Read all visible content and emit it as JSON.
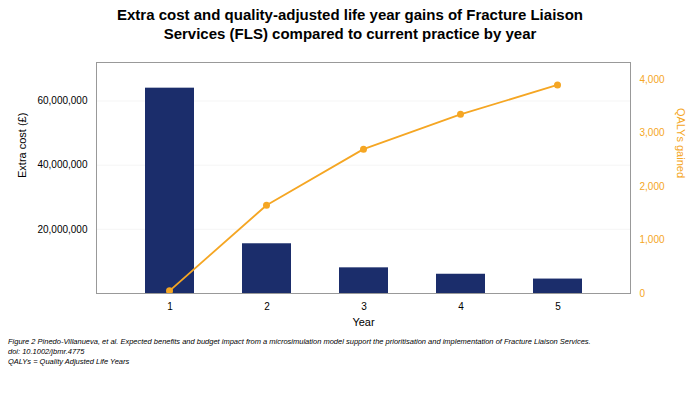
{
  "chart_data": {
    "type": "bar",
    "title": "Extra cost and quality-adjusted life year gains of Fracture Liaison\nServices (FLS) compared to current practice by year",
    "categories": [
      1,
      2,
      3,
      4,
      5
    ],
    "xlabel": "Year",
    "ylabel": "Extra cost (£)",
    "y2label": "QALYs gained",
    "series": [
      {
        "name": "Extra cost (£)",
        "type": "bar",
        "color": "#1B2D6B",
        "values": [
          64000000,
          15500000,
          8000000,
          6000000,
          4500000
        ]
      },
      {
        "name": "QALYs gained",
        "type": "line",
        "axis": "y2",
        "color": "#F5A623",
        "marker": "circle",
        "values": [
          50,
          1650,
          2700,
          3350,
          3900
        ]
      }
    ],
    "ylim": [
      0,
      72000000
    ],
    "yticks": [
      {
        "value": 20000000,
        "label": "20,000,000"
      },
      {
        "value": 40000000,
        "label": "40,000,000"
      },
      {
        "value": 60000000,
        "label": "60,000,000"
      }
    ],
    "y2lim": [
      0,
      4320
    ],
    "y2ticks": [
      0,
      {
        "value": 1000,
        "label": "1,000"
      },
      {
        "value": 2000,
        "label": "2,000"
      },
      {
        "value": 3000,
        "label": "3,000"
      },
      {
        "value": 4000,
        "label": "4,000"
      }
    ],
    "grid": true,
    "footnote": [
      "Figure 2 Pinedo-Villanueva, et al. Expected benefits and budget impact from a microsimulation model support the prioritisation and implementation of Fracture Liaison Services.",
      "doi: 10.1002/jbmr.4775",
      "QALYs = Quality Adjusted Life Years"
    ]
  }
}
